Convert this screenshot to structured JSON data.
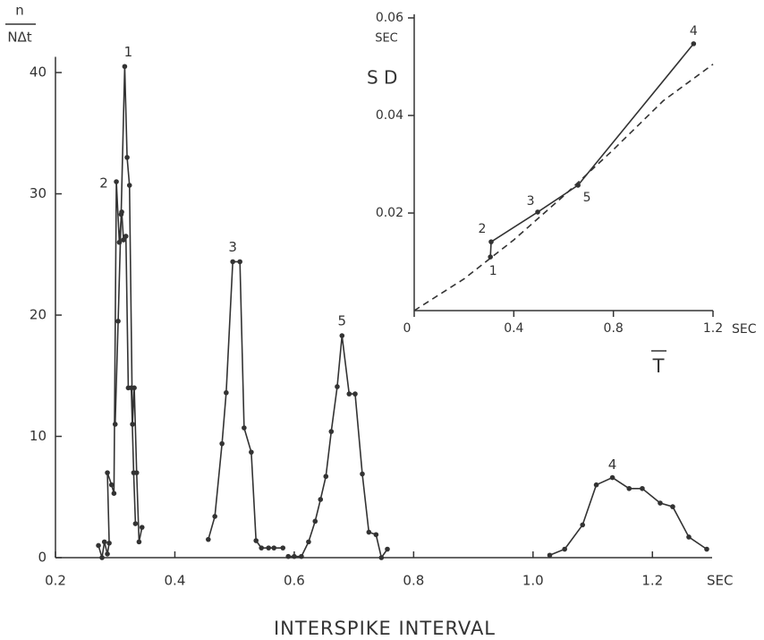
{
  "chart_data": [
    {
      "type": "line",
      "y_label_numerator": "n",
      "y_label_denominator": "NΔt",
      "x_label": "INTERSPIKE INTERVAL",
      "x_unit": "SEC",
      "xlim": [
        0.2,
        1.3
      ],
      "xticks": [
        0.2,
        0.4,
        0.6,
        0.8,
        {
          "value": 1,
          "label": "1.0"
        },
        1.2
      ],
      "ylim": [
        0,
        41
      ],
      "yticks": [
        0,
        10,
        20,
        30,
        40
      ],
      "color": "#333333",
      "series": [
        {
          "name": "1",
          "x": [
            0.3,
            0.305,
            0.31,
            0.316,
            0.32,
            0.324,
            0.329,
            0.332,
            0.336,
            0.34,
            0.345
          ],
          "values": [
            11,
            19.5,
            28.3,
            40.5,
            33,
            30.7,
            11,
            14,
            7,
            1.3,
            2.5
          ]
        },
        {
          "name": "2",
          "x": [
            0.272,
            0.278,
            0.282,
            0.287,
            0.29,
            0.287,
            0.294,
            0.298,
            0.302,
            0.307,
            0.311,
            0.314,
            0.318,
            0.322,
            0.327,
            0.331,
            0.334
          ],
          "values": [
            1,
            0,
            1.3,
            0.3,
            1.2,
            7,
            6,
            5.3,
            31,
            26,
            28.5,
            26.2,
            26.5,
            14,
            14,
            7,
            2.8
          ]
        },
        {
          "name": "3",
          "x": [
            0.456,
            0.467,
            0.479,
            0.486,
            0.497,
            0.509,
            0.516,
            0.528,
            0.536,
            0.545,
            0.557,
            0.566,
            0.581
          ],
          "values": [
            1.5,
            3.4,
            9.4,
            13.6,
            24.4,
            24.4,
            10.7,
            8.7,
            1.4,
            0.8,
            0.8,
            0.8,
            0.8
          ]
        },
        {
          "name": "5",
          "x": [
            0.59,
            0.6,
            0.612,
            0.624,
            0.635,
            0.644,
            0.653,
            0.662,
            0.672,
            0.68,
            0.692,
            0.702,
            0.714,
            0.725,
            0.737,
            0.746,
            0.756
          ],
          "values": [
            0.1,
            0.1,
            0.1,
            1.3,
            3,
            4.8,
            6.7,
            10.4,
            14.1,
            18.3,
            13.5,
            13.5,
            6.9,
            2.1,
            1.9,
            0,
            0.7
          ]
        },
        {
          "name": "4",
          "x": [
            1.028,
            1.053,
            1.083,
            1.106,
            1.133,
            1.161,
            1.183,
            1.213,
            1.234,
            1.261,
            1.291
          ],
          "values": [
            0.2,
            0.7,
            2.7,
            6,
            6.6,
            5.7,
            5.7,
            4.5,
            4.2,
            1.7,
            0.7
          ]
        }
      ]
    },
    {
      "type": "line",
      "y_label": "S D",
      "y_unit": "SEC",
      "x_label": "T",
      "x_unit": "SEC",
      "xlim": [
        0,
        1.2
      ],
      "xticks": [
        0,
        0.4,
        0.8,
        1.2
      ],
      "ylim": [
        0,
        0.06
      ],
      "yticks": [
        0.02,
        0.04,
        0.06
      ],
      "color": "#333333",
      "series": [
        {
          "x": [
            0.306,
            0.309,
            0.496,
            0.658,
            1.122
          ],
          "values": [
            0.011,
            0.0141,
            0.0202,
            0.0257,
            0.0547
          ],
          "point_labels": [
            "1",
            "2",
            "3",
            "5",
            "4"
          ]
        },
        {
          "x": [
            0,
            0.2,
            0.4,
            0.6,
            0.8,
            1.0,
            1.2
          ],
          "values": [
            0,
            0.0065,
            0.0145,
            0.0235,
            0.033,
            0.043,
            0.0505
          ],
          "dashed": true
        }
      ]
    }
  ]
}
